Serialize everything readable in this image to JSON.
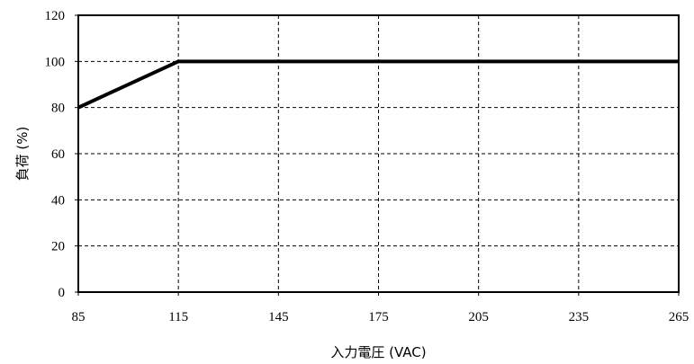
{
  "chart_data": {
    "type": "line",
    "xlabel": "入力電圧 (VAC)",
    "ylabel": "負荷 (%)",
    "xlim": [
      85,
      265
    ],
    "ylim": [
      0,
      120
    ],
    "x_ticks": [
      "85",
      "115",
      "145",
      "175",
      "205",
      "235",
      "265"
    ],
    "y_ticks": [
      "0",
      "20",
      "40",
      "60",
      "80",
      "100",
      "120"
    ],
    "grid": true,
    "series": [
      {
        "x": [
          85,
          115,
          265
        ],
        "y": [
          80,
          100,
          100
        ]
      }
    ]
  }
}
